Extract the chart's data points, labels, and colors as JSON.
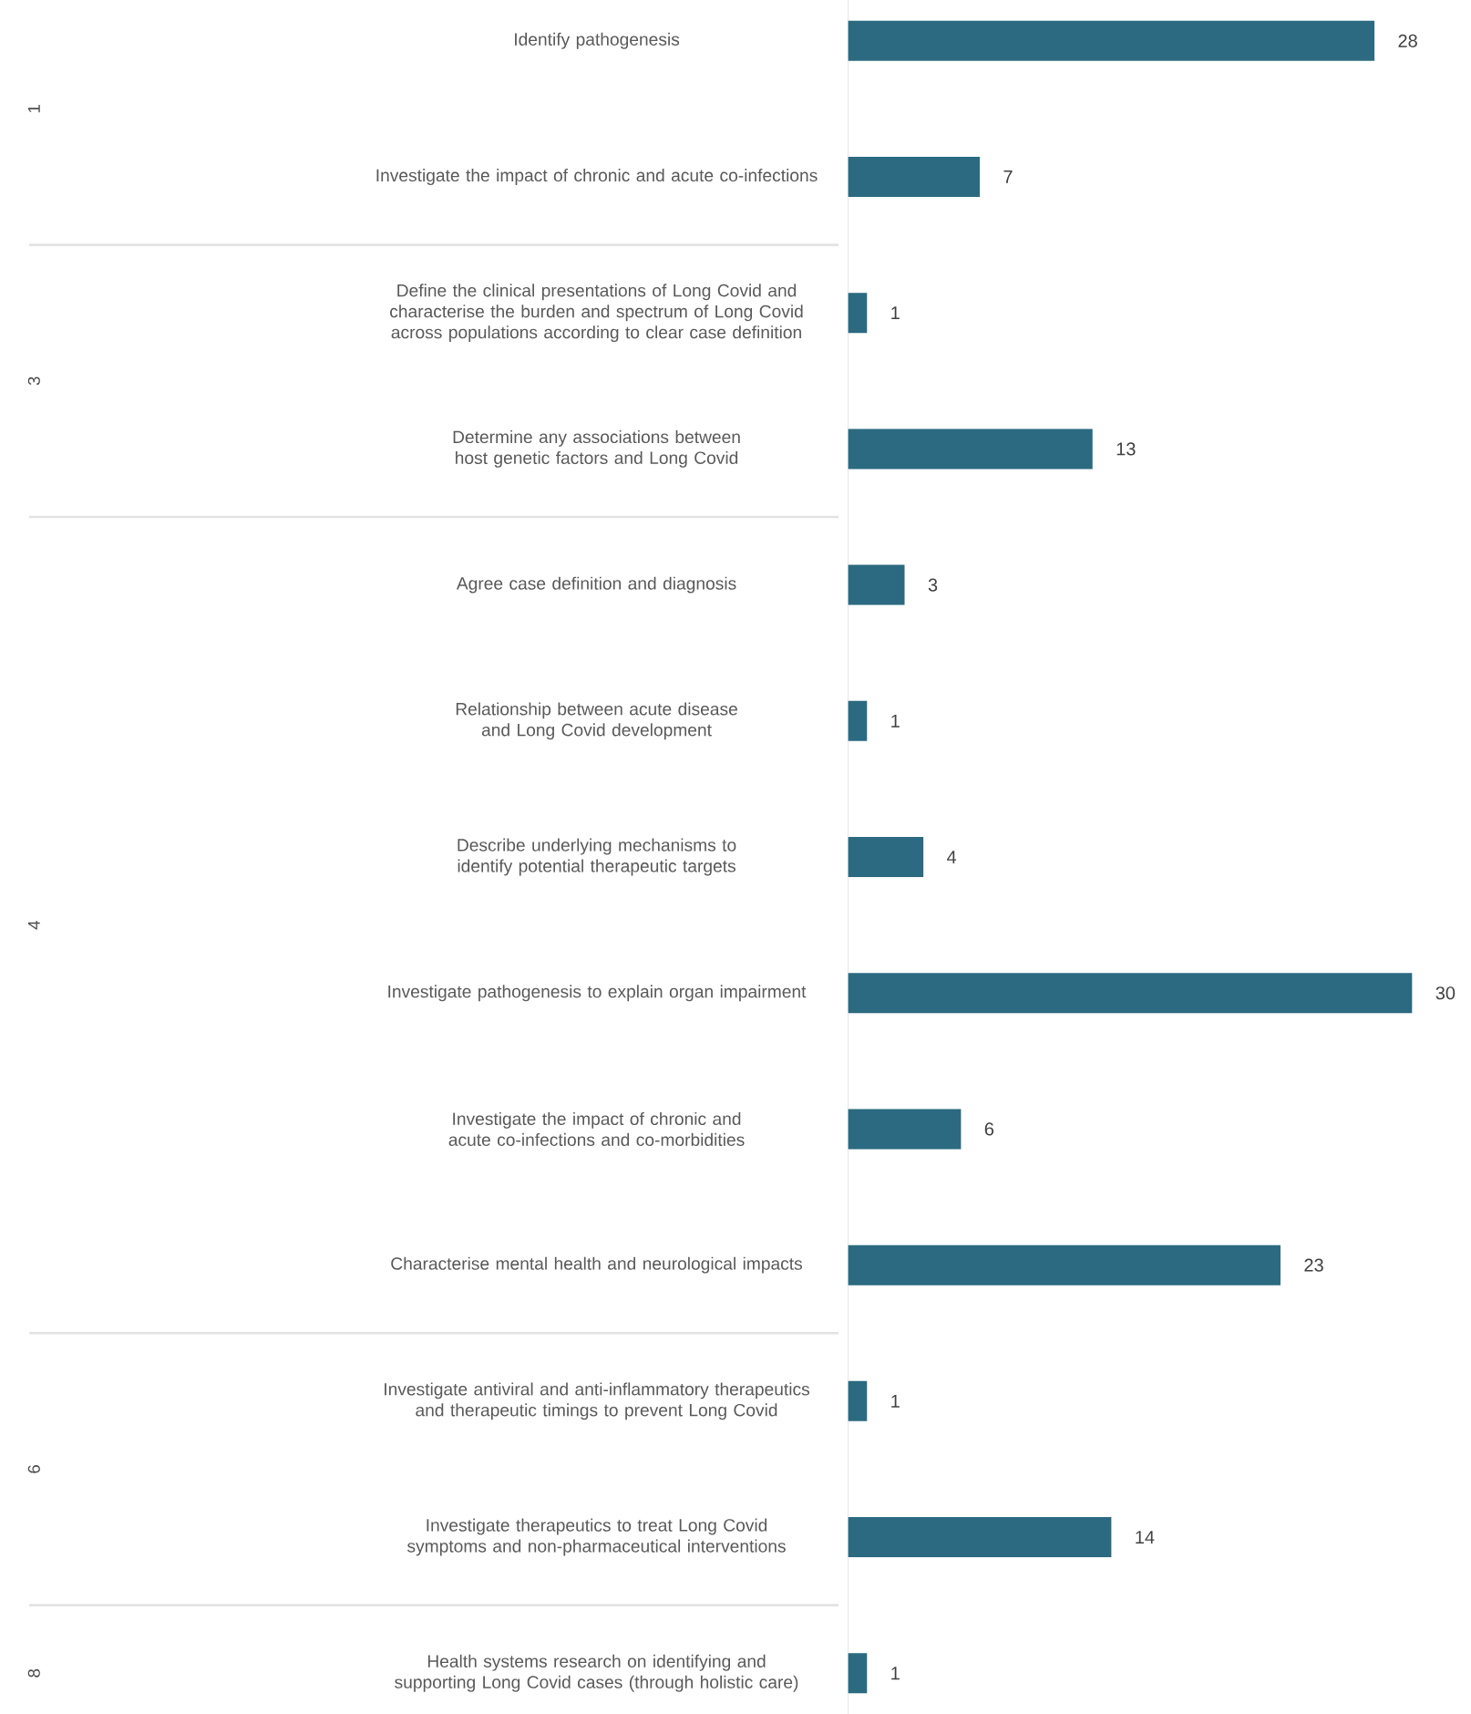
{
  "chart_data": {
    "type": "bar",
    "orientation": "horizontal",
    "categories": [
      "Identify pathogenesis",
      "Investigate the impact of chronic and acute co-infections",
      "Define the clinical presentations of Long Covid and characterise the burden and spectrum of Long Covid across populations according to clear case definition",
      "Determine any associations between host genetic factors and Long Covid",
      "Agree case definition and diagnosis",
      "Relationship between acute disease and Long Covid development",
      "Describe underlying mechanisms to identify potential therapeutic targets",
      "Investigate pathogenesis to explain organ impairment",
      "Investigate the impact of chronic and acute co-infections and co-morbidities",
      "Characterise mental health and neurological impacts",
      "Investigate antiviral and anti-inflammatory therapeutics and therapeutic timings to prevent Long Covid",
      "Investigate therapeutics to treat Long Covid symptoms and non-pharmaceutical interventions",
      "Health systems research on identifying and supporting Long Covid cases (through holistic care)"
    ],
    "values": [
      28,
      7,
      1,
      13,
      3,
      1,
      4,
      30,
      6,
      23,
      1,
      14,
      1
    ],
    "color": "#2b6a80",
    "data_labels": true,
    "xlim": [
      0,
      30
    ],
    "annotations": [
      "1",
      "3",
      "4",
      "6",
      "8"
    ]
  }
}
